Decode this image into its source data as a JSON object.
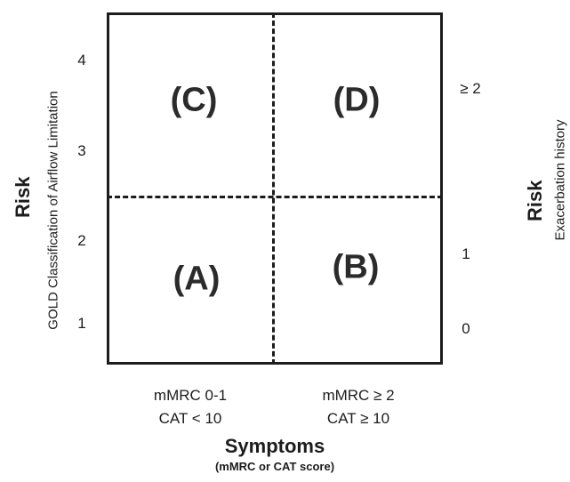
{
  "quadrants": {
    "c": "(C)",
    "d": "(D)",
    "a": "(A)",
    "b": "(B)"
  },
  "left_axis": {
    "title": "Risk",
    "subtitle": "GOLD Classification of Airflow Limitation",
    "ticks": [
      "4",
      "3",
      "2",
      "1"
    ]
  },
  "right_axis": {
    "title": "Risk",
    "subtitle": "Exacerbation history",
    "ticks": [
      "≥ 2",
      "1",
      "0"
    ]
  },
  "bottom_axis": {
    "left_line1": "mMRC 0-1",
    "left_line2": "CAT < 10",
    "right_line1": "mMRC ≥ 2",
    "right_line2": "CAT ≥ 10",
    "title": "Symptoms",
    "subtitle": "(mMRC or CAT score)"
  }
}
